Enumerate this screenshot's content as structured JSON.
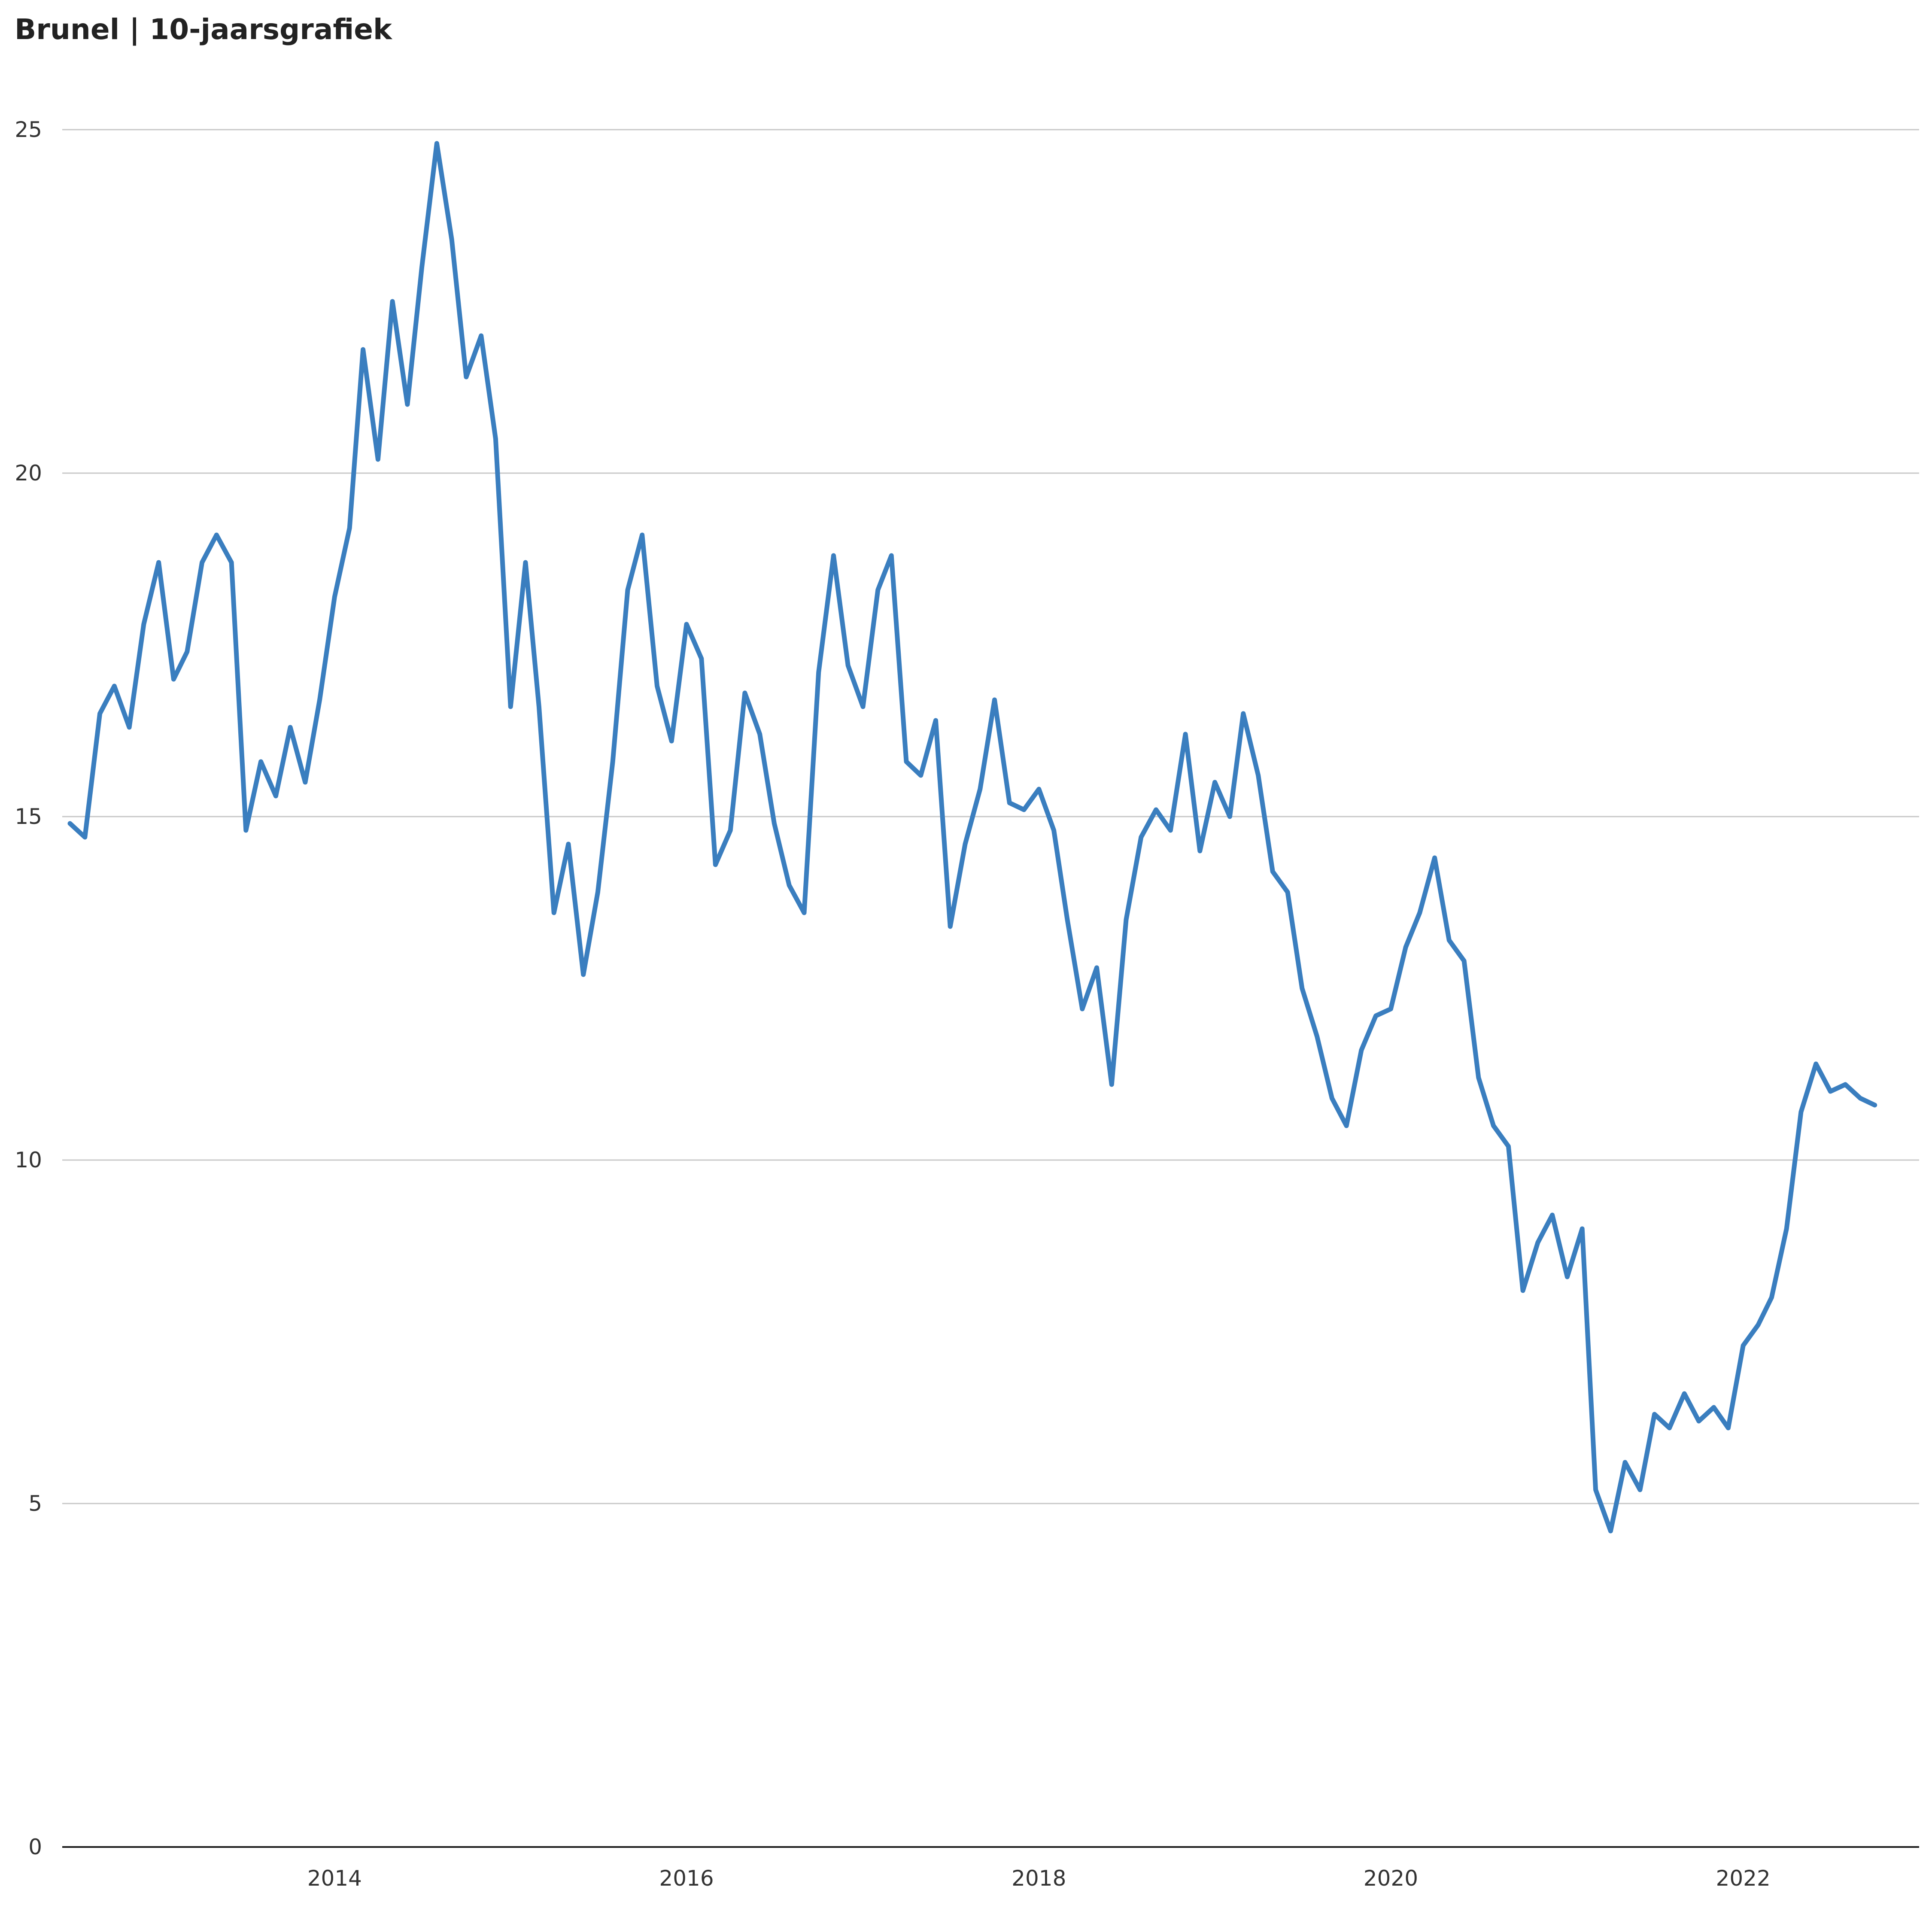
{
  "chart_data": {
    "type": "line",
    "title": "Brunel | 10-jaarsgrafiek",
    "xlabel": "",
    "ylabel": "",
    "ylim": [
      0,
      25
    ],
    "xlim": [
      "2012-06-15",
      "2023-01-01"
    ],
    "yticks": [
      "0",
      "5",
      "10",
      "15",
      "20",
      "25"
    ],
    "xticks": [
      {
        "label": "2014",
        "date": "2014-01-01"
      },
      {
        "label": "2016",
        "date": "2016-01-01"
      },
      {
        "label": "2018",
        "date": "2018-01-01"
      },
      {
        "label": "2020",
        "date": "2020-01-01"
      },
      {
        "label": "2022",
        "date": "2022-01-01"
      }
    ],
    "grid": true,
    "legend": "none",
    "line_color": "#3a7ebf",
    "series": [
      {
        "values": [
          [
            "2012-07-01",
            14.9
          ],
          [
            "2012-08-01",
            14.7
          ],
          [
            "2012-09-01",
            16.5
          ],
          [
            "2012-10-01",
            16.9
          ],
          [
            "2012-11-01",
            16.3
          ],
          [
            "2012-12-01",
            17.8
          ],
          [
            "2013-01-01",
            18.7
          ],
          [
            "2013-02-01",
            17.0
          ],
          [
            "2013-03-01",
            17.4
          ],
          [
            "2013-04-01",
            18.7
          ],
          [
            "2013-05-01",
            19.1
          ],
          [
            "2013-06-01",
            18.7
          ],
          [
            "2013-07-01",
            14.8
          ],
          [
            "2013-08-01",
            15.8
          ],
          [
            "2013-09-01",
            15.3
          ],
          [
            "2013-10-01",
            16.3
          ],
          [
            "2013-11-01",
            15.5
          ],
          [
            "2013-12-01",
            16.7
          ],
          [
            "2014-01-01",
            18.2
          ],
          [
            "2014-02-01",
            19.2
          ],
          [
            "2014-03-01",
            21.8
          ],
          [
            "2014-04-01",
            20.2
          ],
          [
            "2014-05-01",
            22.5
          ],
          [
            "2014-06-01",
            21.0
          ],
          [
            "2014-07-01",
            23.0
          ],
          [
            "2014-08-01",
            24.8
          ],
          [
            "2014-09-01",
            23.4
          ],
          [
            "2014-10-01",
            21.4
          ],
          [
            "2014-11-01",
            22.0
          ],
          [
            "2014-12-01",
            20.5
          ],
          [
            "2015-01-01",
            16.6
          ],
          [
            "2015-02-01",
            18.7
          ],
          [
            "2015-03-01",
            16.6
          ],
          [
            "2015-04-01",
            13.6
          ],
          [
            "2015-05-01",
            14.6
          ],
          [
            "2015-06-01",
            12.7
          ],
          [
            "2015-07-01",
            13.9
          ],
          [
            "2015-08-01",
            15.8
          ],
          [
            "2015-09-01",
            18.3
          ],
          [
            "2015-10-01",
            19.1
          ],
          [
            "2015-11-01",
            16.9
          ],
          [
            "2015-12-01",
            16.1
          ],
          [
            "2016-01-01",
            17.8
          ],
          [
            "2016-02-01",
            17.3
          ],
          [
            "2016-03-01",
            14.3
          ],
          [
            "2016-04-01",
            14.8
          ],
          [
            "2016-05-01",
            16.8
          ],
          [
            "2016-06-01",
            16.2
          ],
          [
            "2016-07-01",
            14.9
          ],
          [
            "2016-08-01",
            14.0
          ],
          [
            "2016-09-01",
            13.6
          ],
          [
            "2016-10-01",
            17.1
          ],
          [
            "2016-11-01",
            18.8
          ],
          [
            "2016-12-01",
            17.2
          ],
          [
            "2017-01-01",
            16.6
          ],
          [
            "2017-02-01",
            18.3
          ],
          [
            "2017-03-01",
            18.8
          ],
          [
            "2017-04-01",
            15.8
          ],
          [
            "2017-05-01",
            15.6
          ],
          [
            "2017-06-01",
            16.4
          ],
          [
            "2017-07-01",
            13.4
          ],
          [
            "2017-08-01",
            14.6
          ],
          [
            "2017-09-01",
            15.4
          ],
          [
            "2017-10-01",
            16.7
          ],
          [
            "2017-11-01",
            15.2
          ],
          [
            "2017-12-01",
            15.1
          ],
          [
            "2018-01-01",
            15.4
          ],
          [
            "2018-02-01",
            14.8
          ],
          [
            "2018-03-01",
            13.5
          ],
          [
            "2018-04-01",
            12.2
          ],
          [
            "2018-05-01",
            12.8
          ],
          [
            "2018-06-01",
            11.1
          ],
          [
            "2018-07-01",
            13.5
          ],
          [
            "2018-08-01",
            14.7
          ],
          [
            "2018-09-01",
            15.1
          ],
          [
            "2018-10-01",
            14.8
          ],
          [
            "2018-11-01",
            16.2
          ],
          [
            "2018-12-01",
            14.5
          ],
          [
            "2019-01-01",
            15.5
          ],
          [
            "2019-02-01",
            15.0
          ],
          [
            "2019-03-01",
            16.5
          ],
          [
            "2019-04-01",
            15.6
          ],
          [
            "2019-05-01",
            14.2
          ],
          [
            "2019-06-01",
            13.9
          ],
          [
            "2019-07-01",
            12.5
          ],
          [
            "2019-08-01",
            11.8
          ],
          [
            "2019-09-01",
            10.9
          ],
          [
            "2019-10-01",
            10.5
          ],
          [
            "2019-11-01",
            11.6
          ],
          [
            "2019-12-01",
            12.1
          ],
          [
            "2020-01-01",
            12.2
          ],
          [
            "2020-02-01",
            13.1
          ],
          [
            "2020-03-01",
            13.6
          ],
          [
            "2020-04-01",
            14.4
          ],
          [
            "2020-05-01",
            13.2
          ],
          [
            "2020-06-01",
            12.9
          ],
          [
            "2020-07-01",
            11.2
          ],
          [
            "2020-08-01",
            10.5
          ],
          [
            "2020-09-01",
            10.2
          ],
          [
            "2020-10-01",
            8.1
          ],
          [
            "2020-11-01",
            8.8
          ],
          [
            "2020-12-01",
            9.2
          ],
          [
            "2021-01-01",
            8.3
          ],
          [
            "2021-02-01",
            9.0
          ],
          [
            "2021-03-01",
            5.2
          ],
          [
            "2021-04-01",
            4.6
          ],
          [
            "2021-05-01",
            5.6
          ],
          [
            "2021-06-01",
            5.2
          ],
          [
            "2021-07-01",
            6.3
          ],
          [
            "2021-08-01",
            6.1
          ],
          [
            "2021-09-01",
            6.6
          ],
          [
            "2021-10-01",
            6.2
          ],
          [
            "2021-11-01",
            6.4
          ],
          [
            "2021-12-01",
            6.1
          ],
          [
            "2022-01-01",
            7.3
          ],
          [
            "2022-02-01",
            7.6
          ],
          [
            "2022-03-01",
            8.0
          ],
          [
            "2022-04-01",
            9.0
          ],
          [
            "2022-05-01",
            10.7
          ],
          [
            "2022-06-01",
            11.4
          ],
          [
            "2022-07-01",
            11.0
          ],
          [
            "2022-08-01",
            11.1
          ],
          [
            "2022-09-01",
            10.9
          ],
          [
            "2022-10-01",
            10.8
          ]
        ]
      }
    ]
  }
}
